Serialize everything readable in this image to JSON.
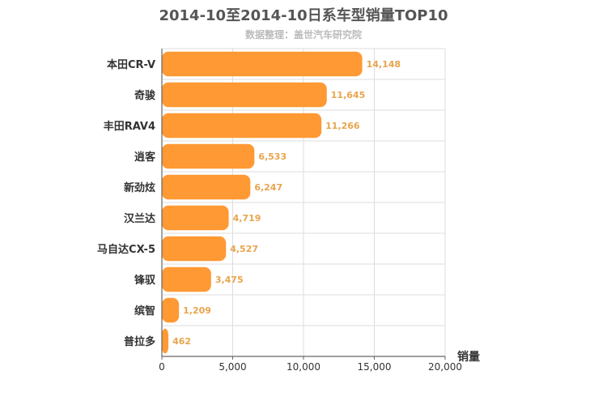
{
  "title": "2014-10至2014-10日系车型销量TOP10",
  "subtitle": "数据整理：盖世汽车研究院",
  "colors": {
    "bar": "#ff9933",
    "value_label": "#e8a44c",
    "grid": "#dddddd",
    "axis": "#666666",
    "text": "#333333"
  },
  "chart_data": {
    "type": "bar",
    "orientation": "horizontal",
    "categories": [
      "本田CR-V",
      "奇骏",
      "丰田RAV4",
      "逍客",
      "新劲炫",
      "汉兰达",
      "马自达CX-5",
      "锋驭",
      "缤智",
      "普拉多"
    ],
    "values": [
      14148,
      11645,
      11266,
      6533,
      6247,
      4719,
      4527,
      3475,
      1209,
      462
    ],
    "value_labels": [
      "14,148",
      "11,645",
      "11,266",
      "6,533",
      "6,247",
      "4,719",
      "4,527",
      "3,475",
      "1,209",
      "462"
    ],
    "xlabel": "销量",
    "ylabel": "",
    "xlim": [
      0,
      20000
    ],
    "xticks": [
      0,
      5000,
      10000,
      15000,
      20000
    ],
    "xtick_labels": [
      "0",
      "5,000",
      "10,000",
      "15,000",
      "20,000"
    ],
    "grid": true,
    "legend": "none"
  }
}
